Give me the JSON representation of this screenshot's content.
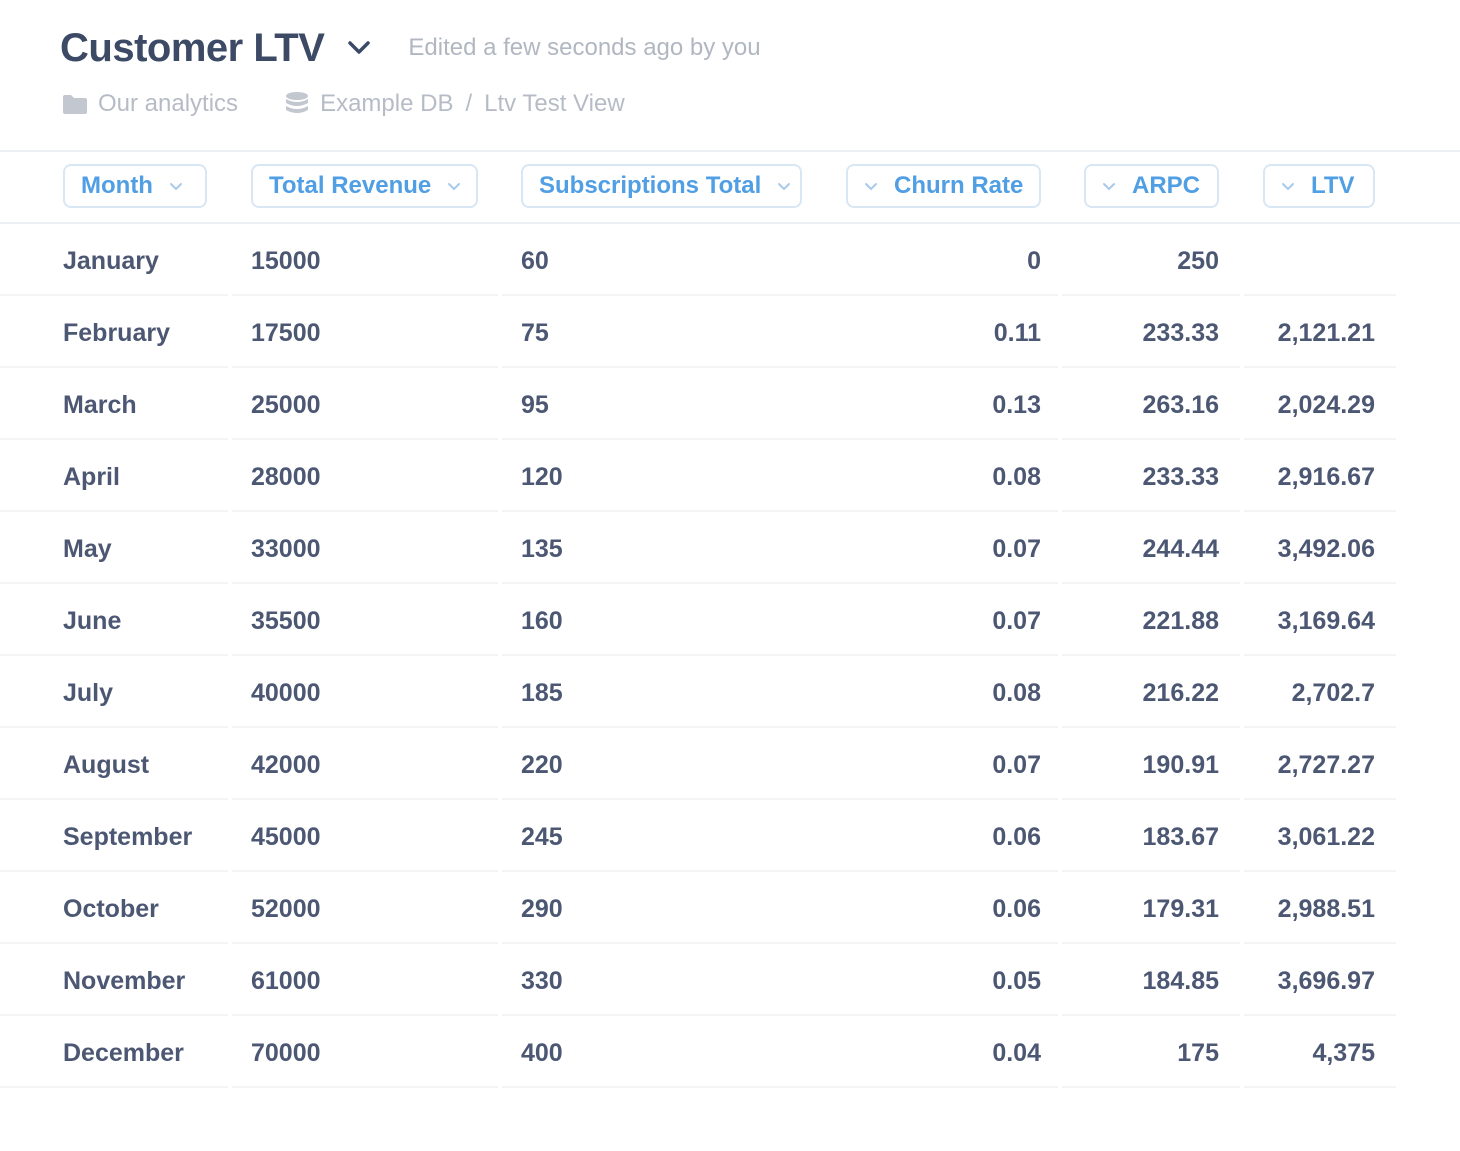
{
  "header": {
    "title": "Customer LTV",
    "edited_text": "Edited a few seconds ago by you",
    "collection": "Our analytics",
    "database": "Example DB",
    "separator": "/",
    "view": "Ltv Test View"
  },
  "table": {
    "columns": [
      {
        "label": "Month",
        "align": "left"
      },
      {
        "label": "Total Revenue",
        "align": "left"
      },
      {
        "label": "Subscriptions Total",
        "align": "left"
      },
      {
        "label": "Churn Rate",
        "align": "right"
      },
      {
        "label": "ARPC",
        "align": "right"
      },
      {
        "label": "LTV",
        "align": "right"
      }
    ],
    "rows": [
      [
        "January",
        "15000",
        "60",
        "0",
        "250",
        ""
      ],
      [
        "February",
        "17500",
        "75",
        "0.11",
        "233.33",
        "2,121.21"
      ],
      [
        "March",
        "25000",
        "95",
        "0.13",
        "263.16",
        "2,024.29"
      ],
      [
        "April",
        "28000",
        "120",
        "0.08",
        "233.33",
        "2,916.67"
      ],
      [
        "May",
        "33000",
        "135",
        "0.07",
        "244.44",
        "3,492.06"
      ],
      [
        "June",
        "35500",
        "160",
        "0.07",
        "221.88",
        "3,169.64"
      ],
      [
        "July",
        "40000",
        "185",
        "0.08",
        "216.22",
        "2,702.7"
      ],
      [
        "August",
        "42000",
        "220",
        "0.07",
        "190.91",
        "2,727.27"
      ],
      [
        "September",
        "45000",
        "245",
        "0.06",
        "183.67",
        "3,061.22"
      ],
      [
        "October",
        "52000",
        "290",
        "0.06",
        "179.31",
        "2,988.51"
      ],
      [
        "November",
        "61000",
        "330",
        "0.05",
        "184.85",
        "3,696.97"
      ],
      [
        "December",
        "70000",
        "400",
        "0.04",
        "175",
        "4,375"
      ]
    ]
  },
  "colors": {
    "accent": "#509ee3",
    "text": "#4c5773",
    "muted": "#b6bcc6",
    "border": "#d9e6f4"
  },
  "icons": {
    "title_menu": "chevron-down-icon",
    "collection": "folder-icon",
    "database": "database-icon",
    "column_menu": "chevron-down-icon"
  }
}
